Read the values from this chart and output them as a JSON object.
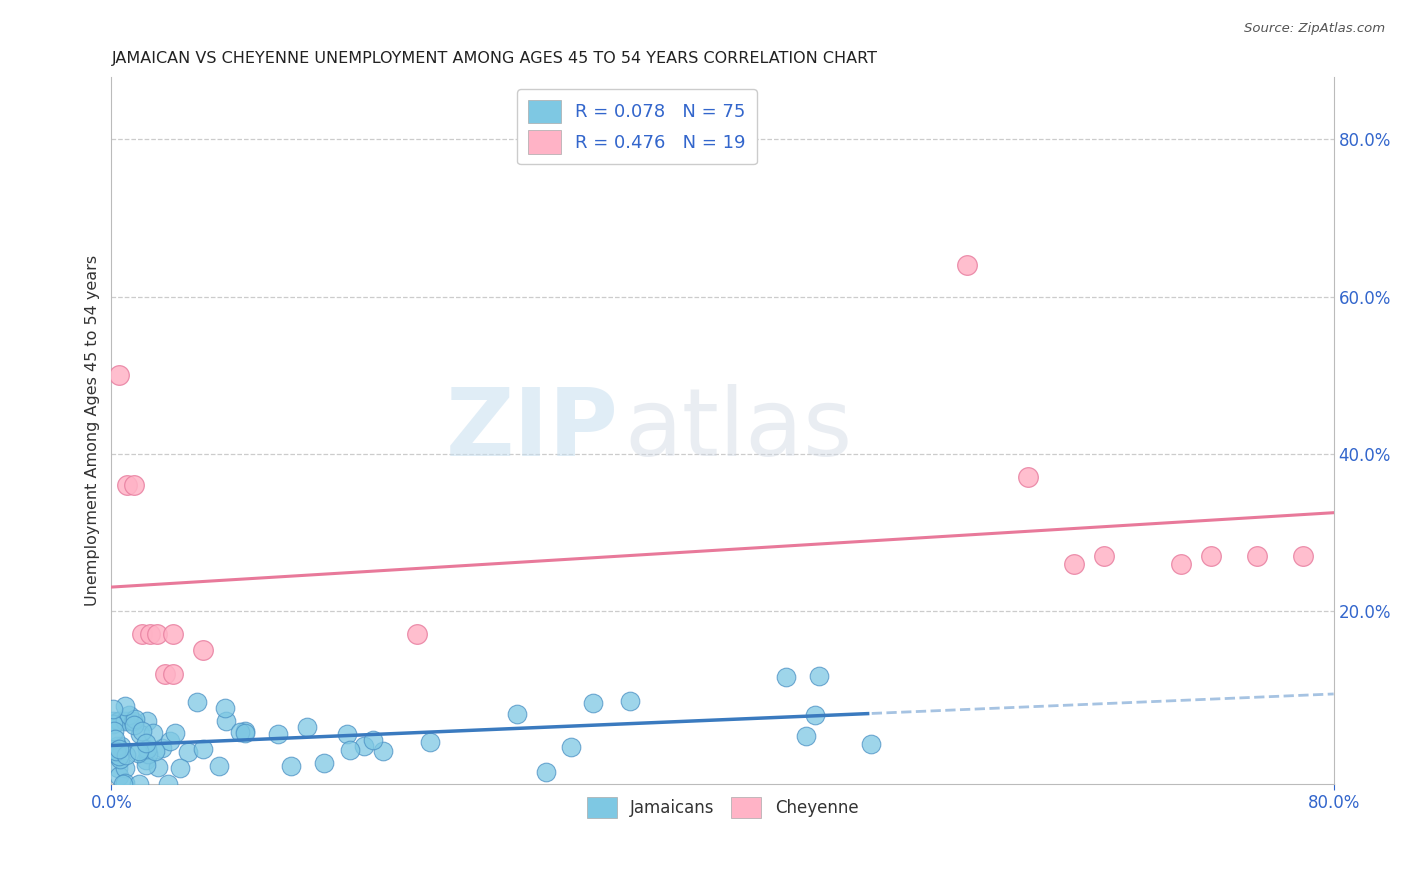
{
  "title": "JAMAICAN VS CHEYENNE UNEMPLOYMENT AMONG AGES 45 TO 54 YEARS CORRELATION CHART",
  "source": "Source: ZipAtlas.com",
  "ylabel": "Unemployment Among Ages 45 to 54 years",
  "xlim": [
    0,
    0.8
  ],
  "ylim": [
    -0.02,
    0.88
  ],
  "yticks": [
    0.2,
    0.4,
    0.6,
    0.8
  ],
  "ytick_labels": [
    "20.0%",
    "40.0%",
    "60.0%",
    "80.0%"
  ],
  "jamaicans_color": "#7ec8e3",
  "jamaicans_edge": "#4a90c4",
  "cheyenne_color": "#ffb3c6",
  "cheyenne_edge": "#e87fa0",
  "jamaicans_line_color": "#3a7abf",
  "cheyenne_line_color": "#e8799a",
  "R_jamaicans": 0.078,
  "N_jamaicans": 75,
  "R_cheyenne": 0.476,
  "N_cheyenne": 19,
  "cheyenne_x": [
    0.005,
    0.01,
    0.015,
    0.02,
    0.025,
    0.03,
    0.035,
    0.04,
    0.04,
    0.06,
    0.2,
    0.56,
    0.6,
    0.63,
    0.65,
    0.7,
    0.72,
    0.75,
    0.78
  ],
  "cheyenne_y": [
    0.5,
    0.36,
    0.36,
    0.17,
    0.17,
    0.17,
    0.12,
    0.12,
    0.17,
    0.15,
    0.17,
    0.64,
    0.37,
    0.26,
    0.27,
    0.26,
    0.27,
    0.27,
    0.27
  ],
  "watermark_zip": "ZIP",
  "watermark_atlas": "atlas",
  "background_color": "#ffffff",
  "grid_color": "#cccccc",
  "tick_color": "#3366cc",
  "title_color": "#222222",
  "source_color": "#555555",
  "legend_label_color": "#333333",
  "legend_value_color": "#3366cc"
}
